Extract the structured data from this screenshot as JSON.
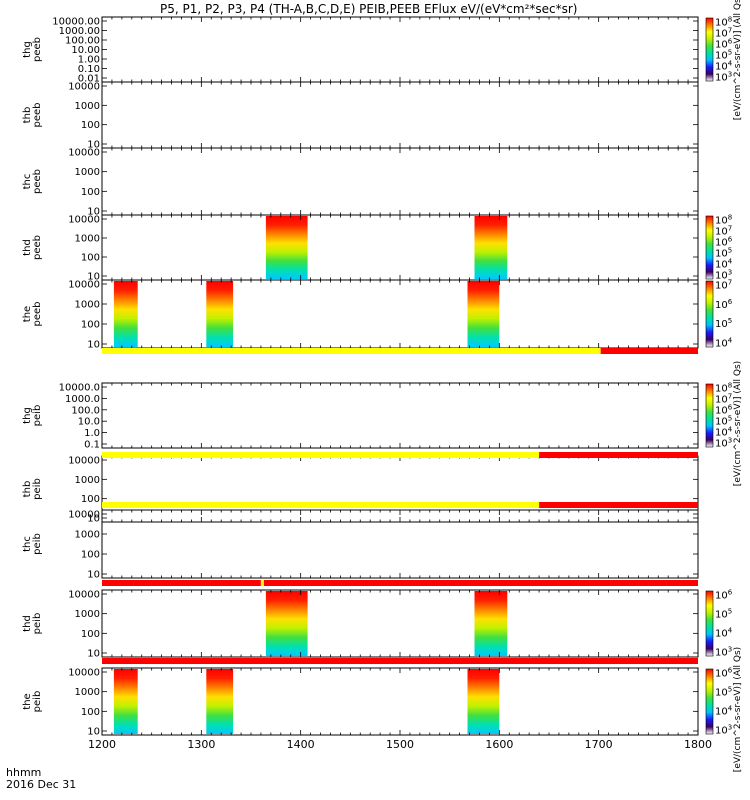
{
  "title": "P5, P1, P2, P3, P4 (TH-A,B,C,D,E) PEIB,PEEB EFlux eV/(eV*cm²*sec*sr)",
  "footer": {
    "time_label": "hhmm",
    "date_label": "2016 Dec 31"
  },
  "colorbar_gradient": [
    "#ffffff",
    "#3a0060",
    "#1a1aff",
    "#00c0ff",
    "#00e0a0",
    "#40e040",
    "#c0f000",
    "#ffff00",
    "#ff8000",
    "#ff0000"
  ],
  "bar_colors": {
    "yellow": "#ffff00",
    "red": "#ff0000"
  },
  "chart_data": {
    "type": "heatmap",
    "x_axis": {
      "label": "hhmm",
      "range": [
        1200,
        1800
      ],
      "ticks": [
        "1200",
        "1300",
        "1400",
        "1500",
        "1600",
        "1700",
        "1800"
      ]
    },
    "panels": [
      {
        "name": "thg peeb",
        "yticks": [
          "10000.00",
          "1000.00",
          "100.00",
          "10.00",
          "1.00",
          "0.10",
          "0.01"
        ],
        "colorbar_ticks": [
          "10^8",
          "10^7",
          "10^6",
          "10^5",
          "10^4",
          "10^3"
        ],
        "colorbar_label": "[eV/(cm^2-s-sr-eV)] (All Qs)",
        "data_intervals": []
      },
      {
        "name": "thb peeb",
        "yticks": [
          "10000",
          "1000",
          "100",
          "10"
        ],
        "data_intervals": []
      },
      {
        "name": "thc peeb",
        "yticks": [
          "10000",
          "1000",
          "100",
          "10"
        ],
        "data_intervals": []
      },
      {
        "name": "thd peeb",
        "yticks": [
          "10000",
          "1000",
          "100",
          "10"
        ],
        "colorbar_ticks": [
          "10^8",
          "10^7",
          "10^6",
          "10^5",
          "10^4",
          "10^3"
        ],
        "data_intervals": [
          [
            1365,
            1407
          ],
          [
            1575,
            1608
          ]
        ]
      },
      {
        "name": "the peeb",
        "yticks": [
          "10000",
          "1000",
          "100",
          "10"
        ],
        "colorbar_ticks": [
          "10^7",
          "10^6",
          "10^5",
          "10^4"
        ],
        "data_intervals": [
          [
            1212,
            1236
          ],
          [
            1305,
            1332
          ],
          [
            1568,
            1600
          ]
        ]
      },
      {
        "name": "thg peib",
        "yticks": [
          "10000.0",
          "1000.0",
          "100.0",
          "10.0",
          "1.0",
          "0.1"
        ],
        "colorbar_ticks": [
          "10^8",
          "10^7",
          "10^6",
          "10^5",
          "10^4",
          "10^3"
        ],
        "colorbar_label": "[eV/(cm^2-s-sr-eV)] (All Qs)",
        "data_intervals": []
      },
      {
        "name": "thb peib",
        "yticks": [
          "10000",
          "1000",
          "100",
          "10"
        ],
        "data_intervals": []
      },
      {
        "name": "thc peib",
        "yticks": [
          "10000",
          "1000",
          "100",
          "10"
        ],
        "data_intervals": []
      },
      {
        "name": "thd peib",
        "yticks": [
          "10000",
          "1000",
          "100",
          "10"
        ],
        "colorbar_ticks": [
          "10^6",
          "10^5",
          "10^4",
          "10^3"
        ],
        "data_intervals": [
          [
            1365,
            1407
          ],
          [
            1575,
            1608
          ]
        ]
      },
      {
        "name": "the peib",
        "yticks": [
          "10000",
          "1000",
          "100",
          "10"
        ],
        "colorbar_ticks": [
          "10^6",
          "10^5",
          "10^4",
          "10^3"
        ],
        "colorbar_label": "[eV/(cm^2-s-sr-eV)] (All Qs)",
        "data_intervals": [
          [
            1212,
            1236
          ],
          [
            1305,
            1332
          ],
          [
            1568,
            1600
          ]
        ]
      }
    ],
    "mode_bars": [
      {
        "segments": [
          {
            "from": 1200,
            "to": 1702,
            "color": "yellow"
          },
          {
            "from": 1702,
            "to": 1800,
            "color": "red"
          }
        ]
      },
      {
        "segments": [
          {
            "from": 1200,
            "to": 1640,
            "color": "yellow"
          },
          {
            "from": 1640,
            "to": 1800,
            "color": "red"
          }
        ]
      },
      {
        "segments": [
          {
            "from": 1200,
            "to": 1640,
            "color": "yellow"
          },
          {
            "from": 1640,
            "to": 1800,
            "color": "red"
          }
        ]
      },
      {
        "segments": [
          {
            "from": 1200,
            "to": 1360,
            "color": "red"
          },
          {
            "from": 1360,
            "to": 1363,
            "color": "yellow"
          },
          {
            "from": 1363,
            "to": 1800,
            "color": "red"
          }
        ]
      },
      {
        "segments": [
          {
            "from": 1200,
            "to": 1800,
            "color": "red"
          }
        ]
      }
    ]
  }
}
